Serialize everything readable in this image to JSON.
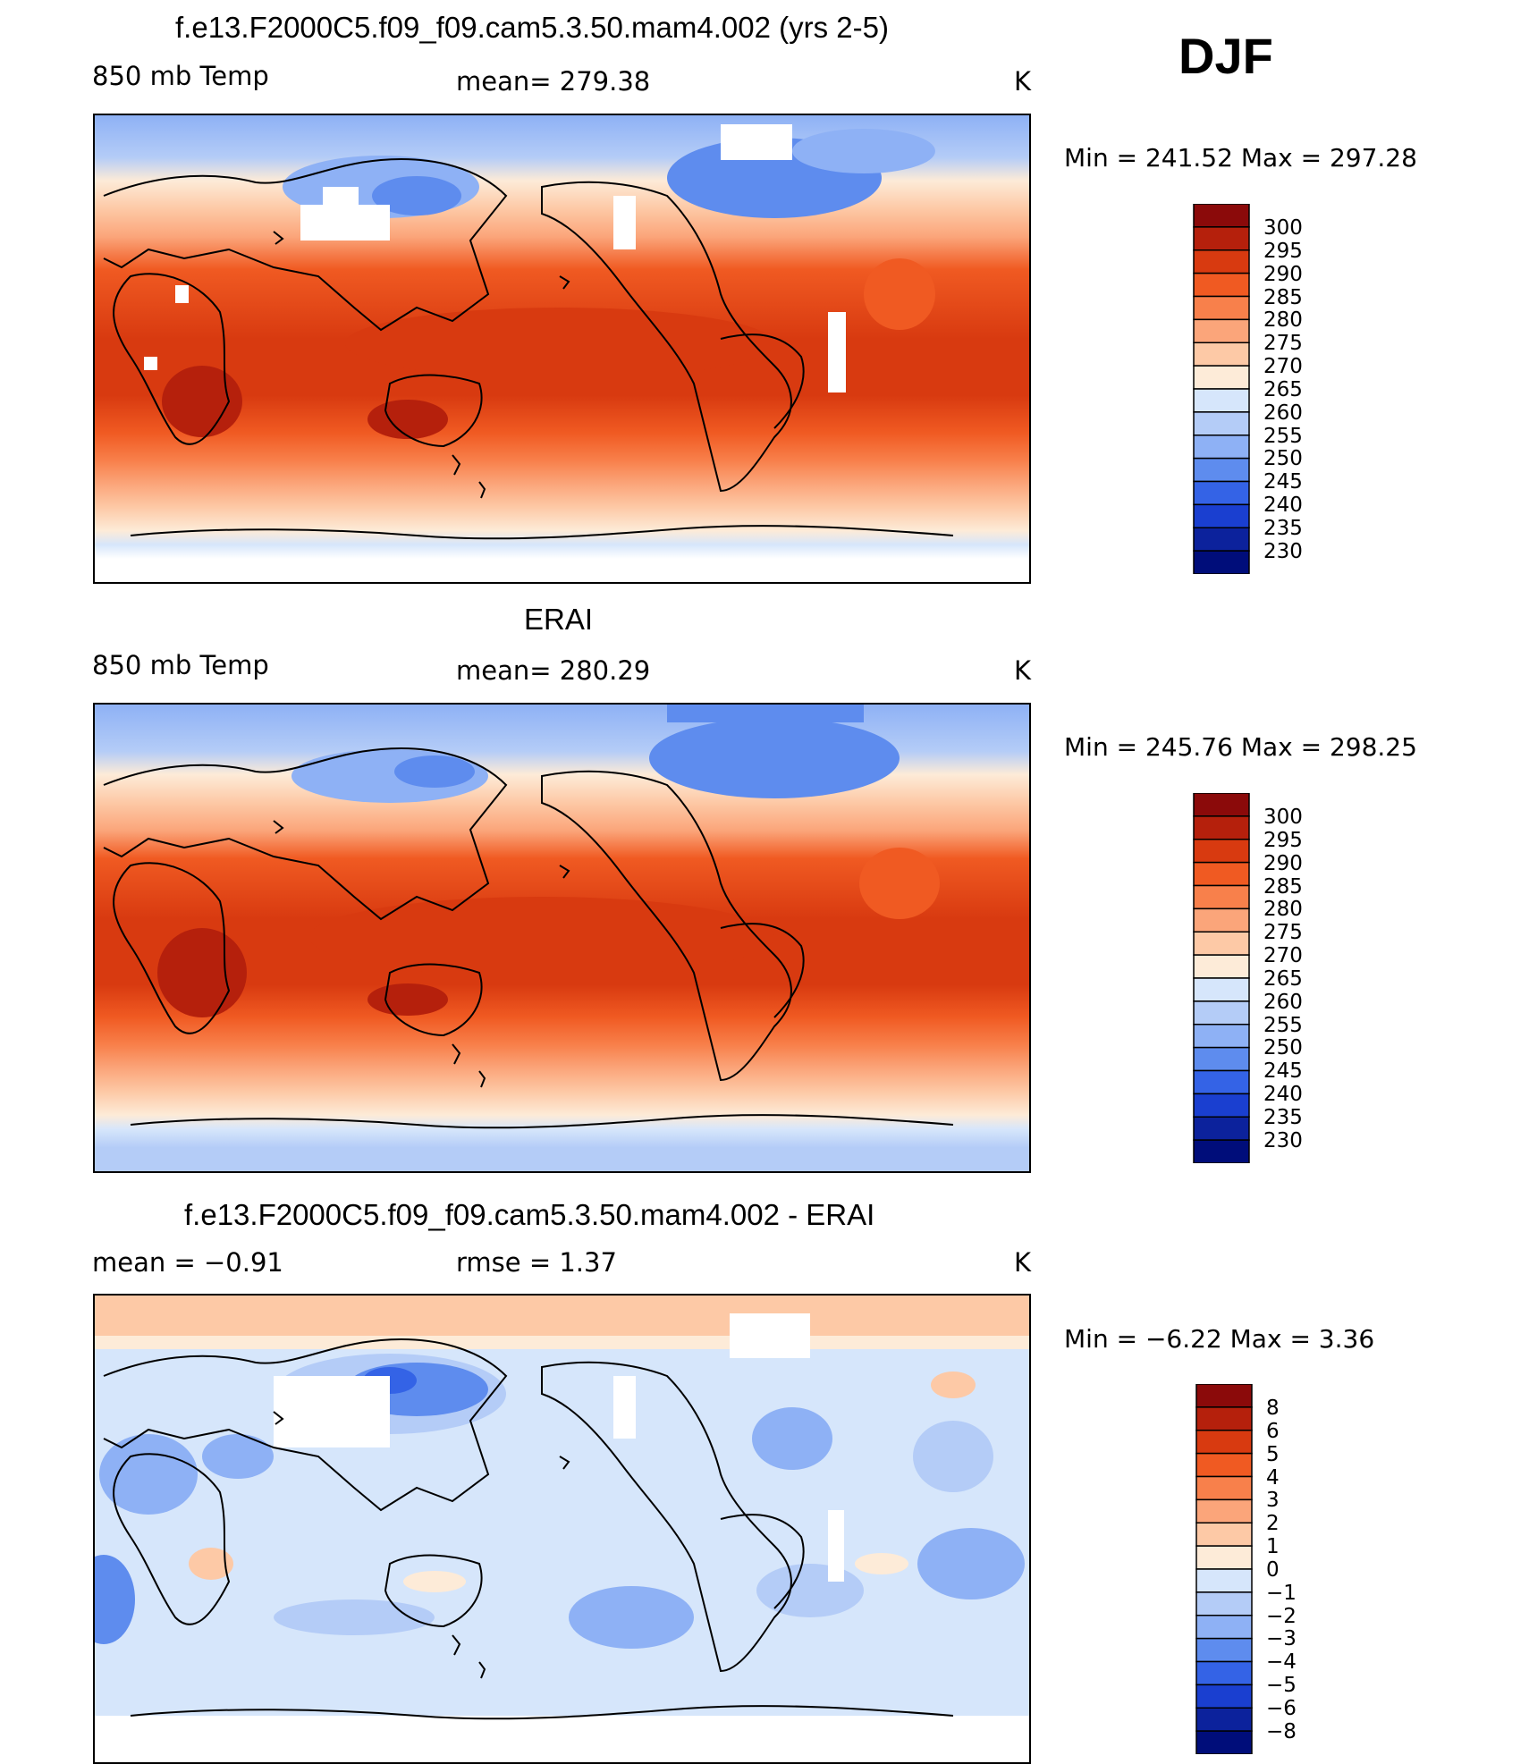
{
  "season": "DJF",
  "units": "K",
  "panels": [
    {
      "id": "model",
      "title": "f.e13.F2000C5.f09_f09.cam5.3.50.mam4.002 (yrs 2-5)",
      "left_label": "850 mb Temp",
      "center_label": "mean=  279.38",
      "units": "K",
      "minmax": "Min  =  241.52  Max  =  297.28",
      "colorbar_labels": [
        "300",
        "295",
        "290",
        "285",
        "280",
        "275",
        "270",
        "265",
        "260",
        "255",
        "250",
        "245",
        "240",
        "235",
        "230"
      ]
    },
    {
      "id": "obs",
      "title": "ERAI",
      "left_label": "850 mb Temp",
      "center_label": "mean=  280.29",
      "units": "K",
      "minmax": "Min  =  245.76  Max  =  298.25",
      "colorbar_labels": [
        "300",
        "295",
        "290",
        "285",
        "280",
        "275",
        "270",
        "265",
        "260",
        "255",
        "250",
        "245",
        "240",
        "235",
        "230"
      ]
    },
    {
      "id": "diff",
      "title": "f.e13.F2000C5.f09_f09.cam5.3.50.mam4.002 - ERAI",
      "left_label": "mean  =     −0.91",
      "center_label": "rmse  =      1.37",
      "units": "K",
      "minmax": "Min  =    −6.22  Max  =      3.36",
      "colorbar_labels": [
        "8",
        "6",
        "5",
        "4",
        "3",
        "2",
        "1",
        "0",
        "−1",
        "−2",
        "−3",
        "−4",
        "−5",
        "−6",
        "−8"
      ]
    }
  ],
  "colors": {
    "temp_scale": [
      "#8b0a0a",
      "#b5200c",
      "#d83a10",
      "#f05a22",
      "#f8804b",
      "#fba57a",
      "#fdc9a6",
      "#fdebd8",
      "#d6e6fb",
      "#b4ccf7",
      "#8eb1f5",
      "#5e8cee",
      "#3463e6",
      "#1a3fd0",
      "#0c229c",
      "#000d7a"
    ],
    "diff_scale": [
      "#8b0a0a",
      "#b5200c",
      "#d83a10",
      "#f05a22",
      "#f8804b",
      "#fba57a",
      "#fdc9a6",
      "#fdebd8",
      "#d6e6fb",
      "#b4ccf7",
      "#8eb1f5",
      "#5e8cee",
      "#3463e6",
      "#1a3fd0",
      "#0c229c",
      "#000d7a"
    ]
  }
}
